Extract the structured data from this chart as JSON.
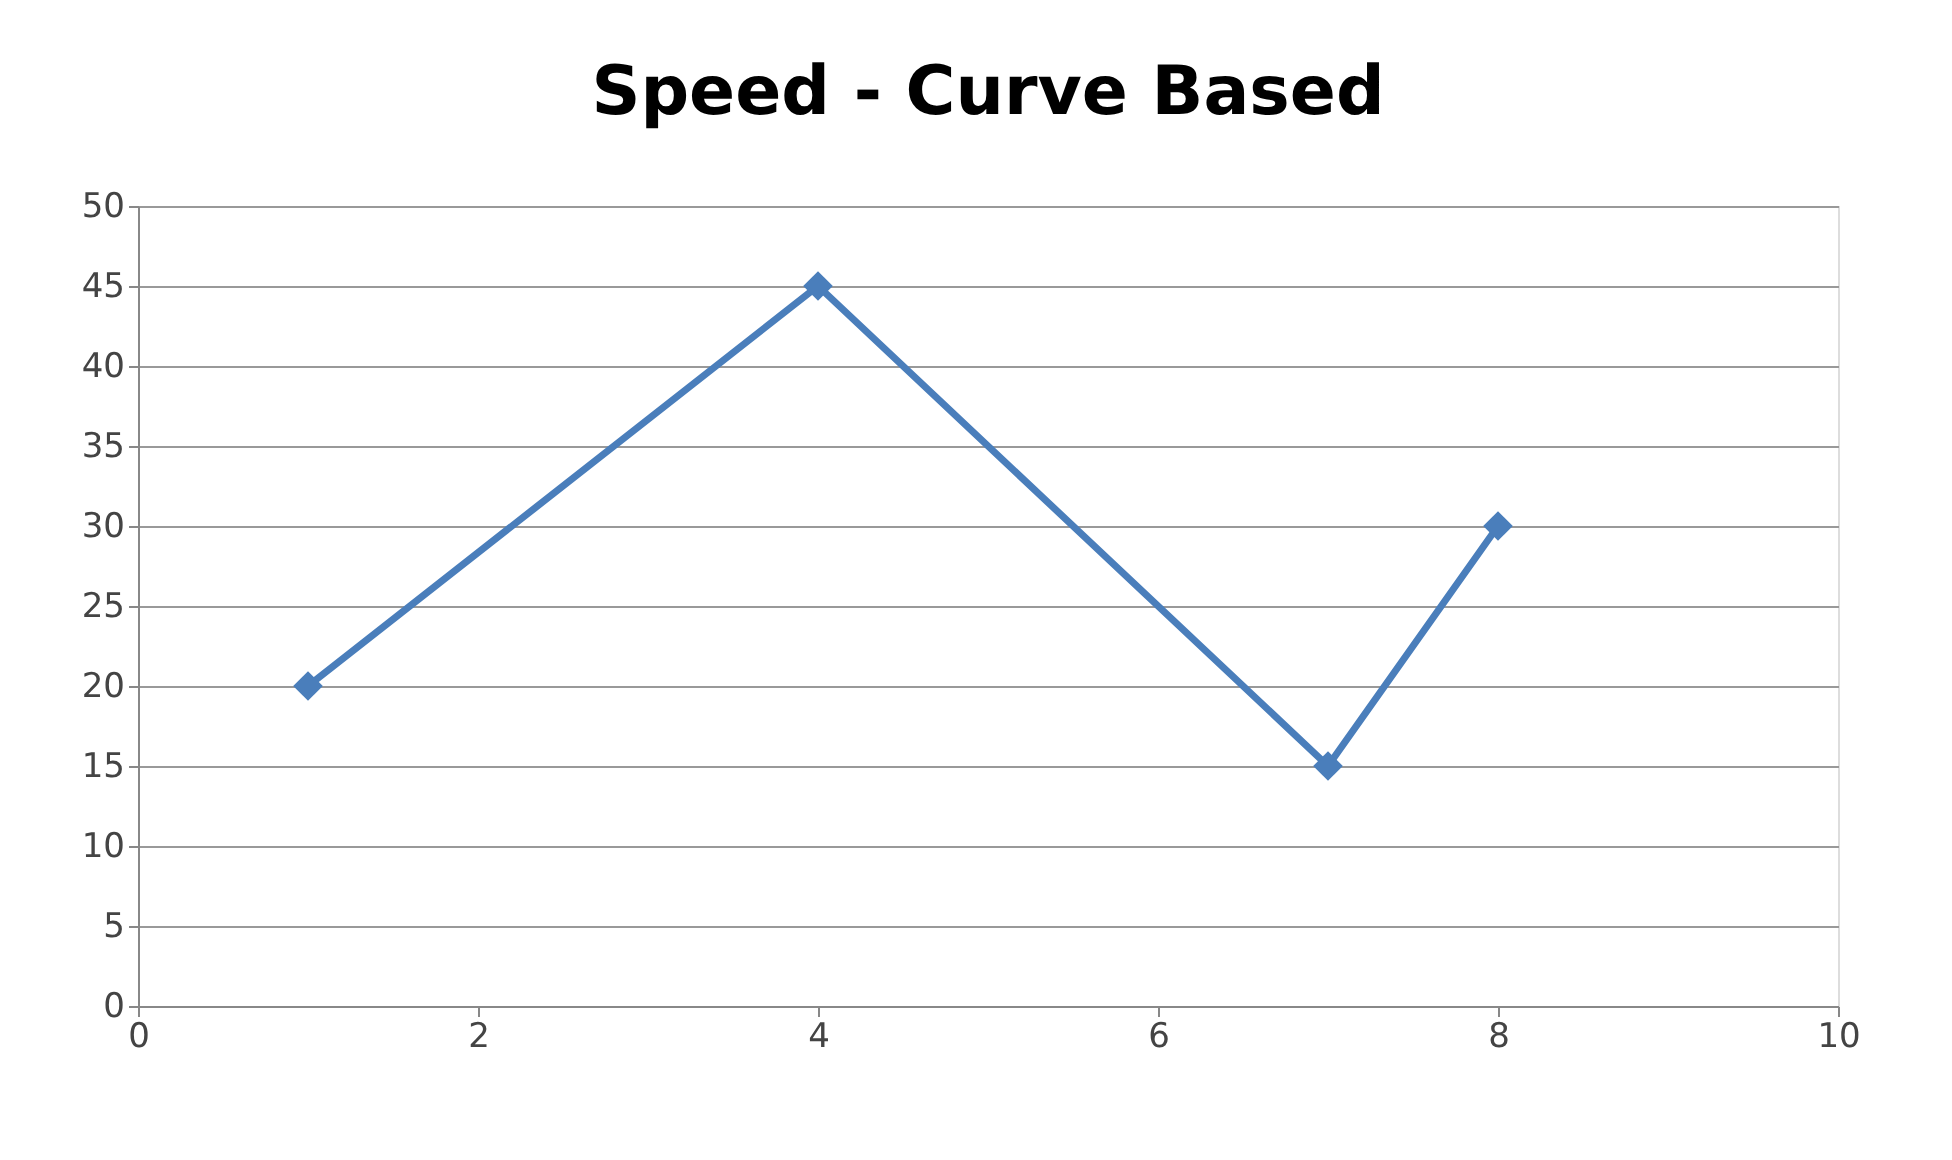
{
  "chart_data": {
    "type": "line",
    "title": "Speed - Curve Based",
    "x": [
      1,
      4,
      7,
      8
    ],
    "series": [
      {
        "color": "#4a7ebb",
        "values": [
          20,
          45,
          15,
          30
        ]
      }
    ],
    "xlim": [
      0,
      10
    ],
    "xticks": [
      0,
      2,
      4,
      6,
      8,
      10
    ],
    "ylim": [
      0,
      50
    ],
    "yticks": [
      0,
      5,
      10,
      15,
      20,
      25,
      30,
      35,
      40,
      45,
      50
    ],
    "grid": "y",
    "marker": "diamond",
    "line_style": "solid"
  }
}
